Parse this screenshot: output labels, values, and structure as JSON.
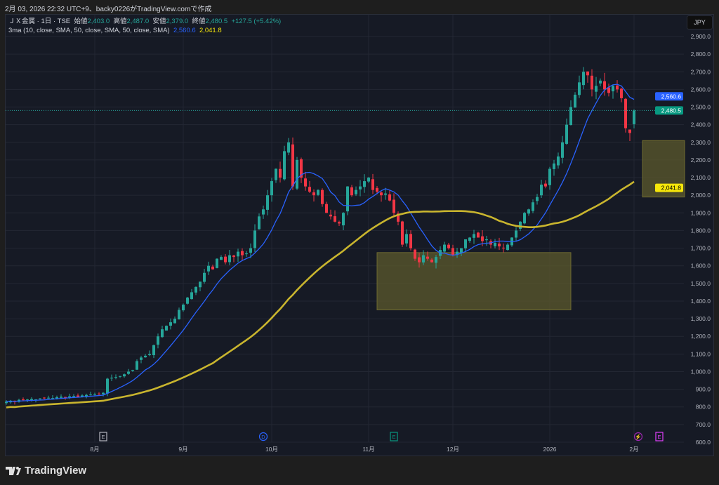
{
  "caption": "2月 03, 2026 22:32 UTC+9、backy0226がTradingView.comで作成",
  "legend": {
    "symbol": "ＪＸ金属 · 1日 · TSE",
    "open_label": "始値",
    "open": "2,403.0",
    "high_label": "高値",
    "high": "2,487.0",
    "low_label": "安値",
    "low": "2,379.0",
    "close_label": "終値",
    "close": "2,480.5",
    "change": "+127.5 (+5.42%)",
    "indicator": "3ma (10, close, SMA, 50, close, SMA, 50, close, SMA)",
    "ma10_value": "2,560.6",
    "ma50_value": "2,041.8"
  },
  "currency": "JPY",
  "brand": "TradingView",
  "colors": {
    "up": "#26a69a",
    "down": "#f23645",
    "ma10": "#2962ff",
    "ma50": "#c9b52e",
    "box": "#5c5a2c"
  },
  "chart_data": {
    "type": "candlestick",
    "ylim": [
      600,
      2950
    ],
    "y_ticks": [
      "600.0",
      "700.0",
      "800.0",
      "900.0",
      "1,000.0",
      "1,100.0",
      "1,200.0",
      "1,300.0",
      "1,400.0",
      "1,500.0",
      "1,600.0",
      "1,700.0",
      "1,800.0",
      "1,900.0",
      "2,000.0",
      "2,100.0",
      "2,200.0",
      "2,300.0",
      "2,400.0",
      "2,500.0",
      "2,600.0",
      "2,700.0",
      "2,800.0",
      "2,900.0"
    ],
    "x_ticks": [
      {
        "label": "8月",
        "bar": 21
      },
      {
        "label": "9月",
        "bar": 42
      },
      {
        "label": "10月",
        "bar": 63
      },
      {
        "label": "11月",
        "bar": 86
      },
      {
        "label": "12月",
        "bar": 106
      },
      {
        "label": "2026",
        "bar": 129
      },
      {
        "label": "2月",
        "bar": 149
      }
    ],
    "closes": [
      830,
      835,
      828,
      840,
      838,
      842,
      845,
      843,
      848,
      850,
      852,
      850,
      855,
      858,
      856,
      860,
      862,
      858,
      865,
      868,
      870,
      872,
      875,
      880,
      960,
      965,
      970,
      975,
      985,
      1000,
      1010,
      1060,
      1080,
      1090,
      1100,
      1150,
      1200,
      1240,
      1260,
      1280,
      1300,
      1350,
      1380,
      1420,
      1450,
      1480,
      1510,
      1560,
      1600,
      1580,
      1640,
      1650,
      1620,
      1660,
      1650,
      1680,
      1660,
      1670,
      1700,
      1800,
      1880,
      1920,
      2000,
      2080,
      2150,
      2100,
      2250,
      2300,
      2050,
      2200,
      2100,
      2050,
      2020,
      2000,
      2030,
      1950,
      1900,
      1880,
      1850,
      1840,
      1900,
      2050,
      2000,
      2030,
      2050,
      2080,
      2100,
      2030,
      2020,
      2000,
      2010,
      1970,
      1900,
      1850,
      1720,
      1780,
      1700,
      1640,
      1620,
      1660,
      1640,
      1620,
      1650,
      1690,
      1720,
      1700,
      1660,
      1680,
      1700,
      1750,
      1760,
      1780,
      1760,
      1740,
      1750,
      1720,
      1730,
      1710,
      1700,
      1720,
      1760,
      1800,
      1850,
      1900,
      1920,
      1960,
      1990,
      2060,
      2050,
      2150,
      2180,
      2220,
      2300,
      2400,
      2500,
      2570,
      2640,
      2700,
      2680,
      2600,
      2620,
      2650,
      2600,
      2580,
      2620,
      2600,
      2550,
      2380,
      2353,
      2480.5
    ],
    "last_bar": {
      "open": 2403.0,
      "high": 2487.0,
      "low": 2379.0,
      "close": 2480.5
    },
    "series": [
      {
        "name": "SMA 10",
        "value_label": "2,560.6"
      },
      {
        "name": "SMA 50",
        "value_label": "2,041.8"
      }
    ],
    "last_price_label": "2,480.5",
    "zones": [
      {
        "bar_from": 88,
        "bar_to": 134,
        "price_from": 1350,
        "price_to": 1675
      },
      {
        "bar_from": 151,
        "bar_to": 161,
        "price_from": 1990,
        "price_to": 2310
      }
    ],
    "events": [
      {
        "type": "earnings",
        "label": "E",
        "bar": 23,
        "color": "#b2b5be"
      },
      {
        "type": "dividend",
        "label": "D",
        "bar": 61,
        "color": "#2962ff"
      },
      {
        "type": "earnings",
        "label": "E",
        "bar": 92,
        "color": "#089981"
      },
      {
        "type": "split",
        "label": "⚡",
        "bar": 150,
        "color": "#9c27b0"
      },
      {
        "type": "earnings",
        "label": "E",
        "bar": 155,
        "color": "#e040fb"
      }
    ]
  }
}
